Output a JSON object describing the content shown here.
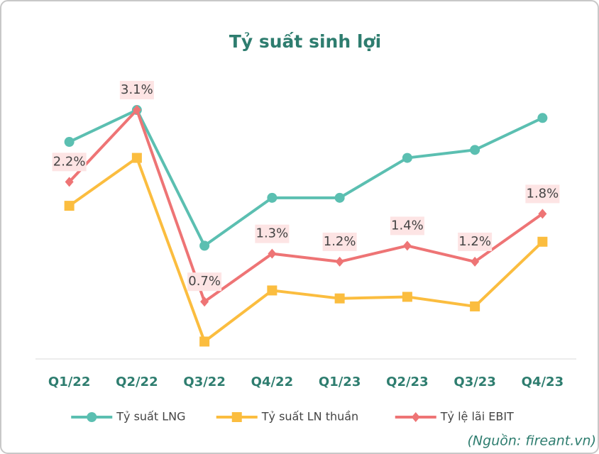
{
  "chart_data": {
    "type": "line",
    "title": "Tỷ suất sinh lợi",
    "categories": [
      "Q1/22",
      "Q2/22",
      "Q3/22",
      "Q4/22",
      "Q1/23",
      "Q2/23",
      "Q3/23",
      "Q4/23"
    ],
    "series": [
      {
        "name": "Tỷ suất LNG",
        "color": "#5bbfb1",
        "marker": "circle",
        "values": [
          2.7,
          3.1,
          1.4,
          2.0,
          2.0,
          2.5,
          2.6,
          3.0
        ]
      },
      {
        "name": "Tỷ suất LN thuần",
        "color": "#fbbd3f",
        "marker": "square",
        "values": [
          1.9,
          2.5,
          0.2,
          0.84,
          0.74,
          0.76,
          0.64,
          1.45
        ]
      },
      {
        "name": "Tỷ lệ lãi EBIT",
        "color": "#ee7475",
        "marker": "diamond",
        "values": [
          2.2,
          3.1,
          0.7,
          1.3,
          1.2,
          1.4,
          1.2,
          1.8
        ],
        "value_labels": [
          "2.2%",
          "3.1%",
          "0.7%",
          "1.3%",
          "1.2%",
          "1.4%",
          "1.2%",
          "1.8%"
        ]
      }
    ],
    "ylim": [
      0,
      3.5
    ],
    "legend": "bottom",
    "source": "(Nguồn: fireant.vn)"
  }
}
